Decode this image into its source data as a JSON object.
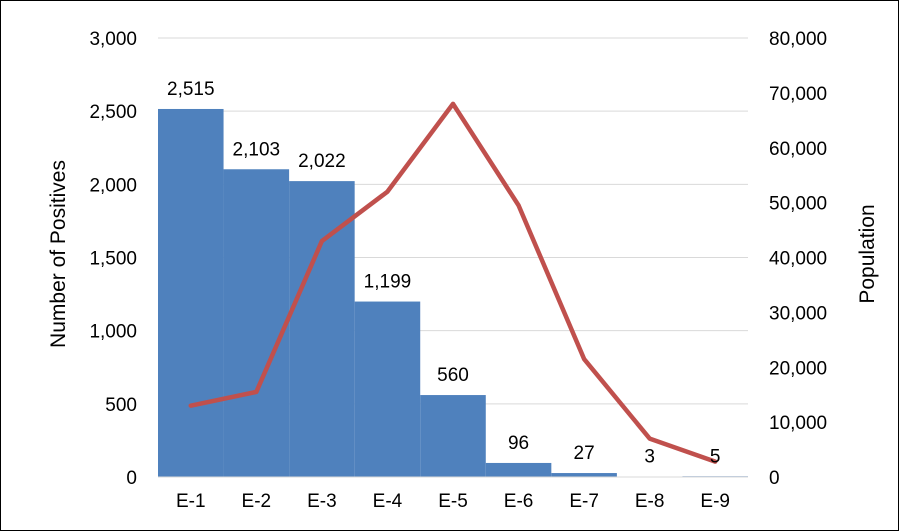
{
  "chart_data": {
    "type": "bar+line",
    "categories": [
      "E-1",
      "E-2",
      "E-3",
      "E-4",
      "E-5",
      "E-6",
      "E-7",
      "E-8",
      "E-9"
    ],
    "series": [
      {
        "type": "bar",
        "axis": "left",
        "color": "#4f81bd",
        "values": [
          2515,
          2103,
          2022,
          1199,
          560,
          96,
          27,
          3,
          5
        ],
        "data_labels": [
          "2,515",
          "2,103",
          "2,022",
          "1,199",
          "560",
          "96",
          "27",
          "3",
          "5"
        ]
      },
      {
        "type": "line",
        "axis": "right",
        "color": "#c0504d",
        "values": [
          13000,
          15500,
          43000,
          52000,
          68000,
          49500,
          21500,
          7000,
          2800
        ]
      }
    ],
    "ylabel": "Number of Positives",
    "y2label": "Population",
    "ylim": [
      0,
      3000
    ],
    "y2lim": [
      0,
      80000
    ],
    "yticks": [
      "0",
      "500",
      "1,000",
      "1,500",
      "2,000",
      "2,500",
      "3,000"
    ],
    "y2ticks": [
      "0",
      "10,000",
      "20,000",
      "30,000",
      "40,000",
      "50,000",
      "60,000",
      "70,000",
      "80,000"
    ],
    "grid": true,
    "legend": "none"
  }
}
